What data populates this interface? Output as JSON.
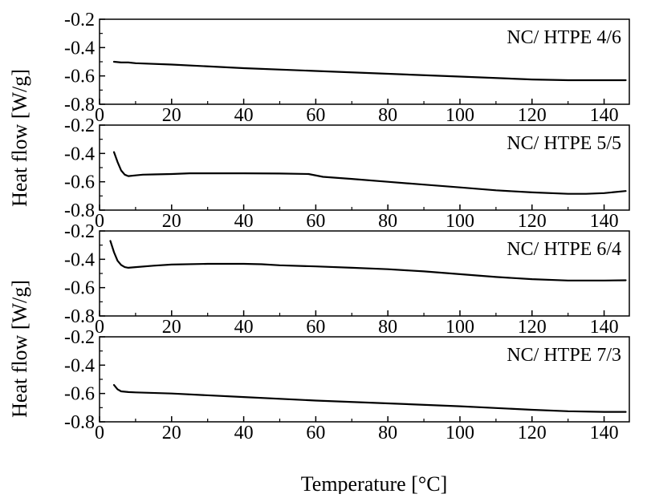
{
  "chart_data": [
    {
      "type": "line",
      "label": "NC/ HTPE 4/6",
      "xlim": [
        0,
        147
      ],
      "ylim": [
        -0.8,
        -0.2
      ],
      "xticks": [
        0,
        20,
        40,
        60,
        80,
        100,
        120,
        140
      ],
      "yticks": [
        -0.2,
        -0.4,
        -0.6,
        -0.8
      ],
      "x": [
        4,
        6,
        8,
        10,
        20,
        40,
        60,
        80,
        100,
        120,
        130,
        140,
        146
      ],
      "y": [
        -0.5,
        -0.505,
        -0.505,
        -0.51,
        -0.52,
        -0.545,
        -0.565,
        -0.585,
        -0.605,
        -0.625,
        -0.63,
        -0.63,
        -0.63
      ]
    },
    {
      "type": "line",
      "label": "NC/ HTPE 5/5",
      "xlim": [
        0,
        147
      ],
      "ylim": [
        -0.8,
        -0.2
      ],
      "xticks": [
        0,
        20,
        40,
        60,
        80,
        100,
        120,
        140
      ],
      "yticks": [
        -0.2,
        -0.4,
        -0.6,
        -0.8
      ],
      "x": [
        4,
        5,
        6,
        7,
        8,
        10,
        12,
        15,
        20,
        25,
        30,
        40,
        50,
        58,
        62,
        70,
        80,
        90,
        100,
        110,
        120,
        130,
        135,
        140,
        146
      ],
      "y": [
        -0.39,
        -0.46,
        -0.52,
        -0.55,
        -0.56,
        -0.555,
        -0.55,
        -0.548,
        -0.545,
        -0.54,
        -0.54,
        -0.54,
        -0.542,
        -0.545,
        -0.565,
        -0.58,
        -0.6,
        -0.62,
        -0.64,
        -0.66,
        -0.675,
        -0.685,
        -0.685,
        -0.68,
        -0.665
      ]
    },
    {
      "type": "line",
      "label": "NC/ HTPE 6/4",
      "xlim": [
        0,
        147
      ],
      "ylim": [
        -0.8,
        -0.2
      ],
      "xticks": [
        0,
        20,
        40,
        60,
        80,
        100,
        120,
        140
      ],
      "yticks": [
        -0.2,
        -0.4,
        -0.6,
        -0.8
      ],
      "x": [
        3,
        4,
        5,
        6,
        7,
        8,
        10,
        15,
        20,
        30,
        40,
        45,
        50,
        60,
        70,
        80,
        90,
        100,
        110,
        120,
        130,
        135,
        140,
        146
      ],
      "y": [
        -0.27,
        -0.35,
        -0.41,
        -0.44,
        -0.455,
        -0.46,
        -0.455,
        -0.445,
        -0.437,
        -0.432,
        -0.432,
        -0.435,
        -0.442,
        -0.45,
        -0.46,
        -0.47,
        -0.485,
        -0.505,
        -0.525,
        -0.54,
        -0.55,
        -0.55,
        -0.55,
        -0.548
      ]
    },
    {
      "type": "line",
      "label": "NC/ HTPE 7/3",
      "xlim": [
        0,
        147
      ],
      "ylim": [
        -0.8,
        -0.2
      ],
      "xticks": [
        0,
        20,
        40,
        60,
        80,
        100,
        120,
        140
      ],
      "yticks": [
        -0.2,
        -0.4,
        -0.6,
        -0.8
      ],
      "x": [
        4,
        5,
        6,
        8,
        10,
        20,
        40,
        60,
        80,
        100,
        120,
        130,
        140,
        146
      ],
      "y": [
        -0.54,
        -0.57,
        -0.585,
        -0.59,
        -0.592,
        -0.6,
        -0.625,
        -0.65,
        -0.67,
        -0.69,
        -0.715,
        -0.725,
        -0.73,
        -0.73
      ]
    }
  ],
  "axes": {
    "ylabel_top": "Heat flow [W/g]",
    "ylabel_bottom": "Heat flow [W/g]",
    "xlabel": "Temperature [°C]"
  },
  "colors": {
    "line": "#000000",
    "axis": "#000000"
  }
}
